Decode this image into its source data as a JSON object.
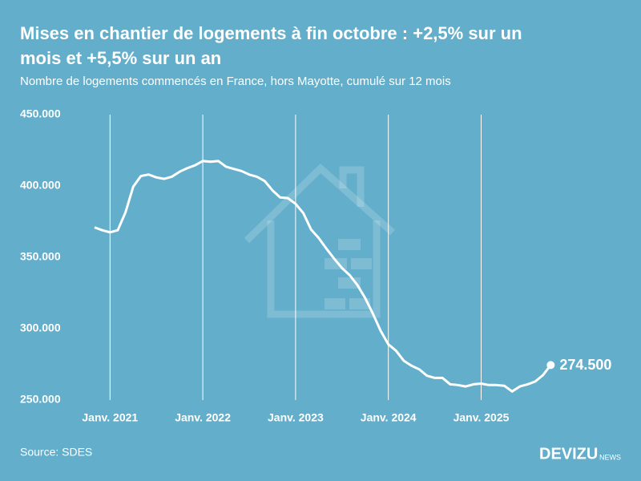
{
  "chart_data": {
    "type": "line",
    "title": [
      "Mises en chantier de logements à fin octobre : +2,5% sur un",
      "mois et +5,5% sur un an"
    ],
    "subtitle": "Nombre de logements commencés en France, hors Mayotte, cumulé sur 12 mois",
    "source": "Source: SDES",
    "brand": "DEVIZU",
    "brand_suffix": "NEWS",
    "background": "#62aecb",
    "color": "#ffffff",
    "xgrid": true,
    "categories": [
      null,
      null,
      "Janv. 2021",
      null,
      null,
      null,
      null,
      null,
      null,
      null,
      null,
      null,
      null,
      null,
      "Janv. 2022",
      null,
      null,
      null,
      null,
      null,
      null,
      null,
      null,
      null,
      null,
      null,
      "Janv. 2023",
      null,
      null,
      null,
      null,
      null,
      null,
      null,
      null,
      null,
      null,
      null,
      "Janv. 2024",
      null,
      null,
      null,
      null,
      null,
      null,
      null,
      null,
      null,
      null,
      null,
      "Janv. 2025",
      null,
      null,
      null,
      null,
      null,
      null,
      null,
      null,
      null
    ],
    "values": [
      371000,
      369000,
      367500,
      369000,
      381500,
      399500,
      407000,
      408000,
      406000,
      405000,
      406500,
      410000,
      412500,
      414500,
      417500,
      417000,
      417500,
      413500,
      412000,
      410500,
      408000,
      406500,
      403500,
      397000,
      392000,
      391500,
      387500,
      381000,
      369500,
      363500,
      356000,
      349000,
      342500,
      337500,
      330500,
      321500,
      310500,
      298500,
      289000,
      284500,
      277500,
      274000,
      271500,
      267000,
      265500,
      265500,
      261000,
      260500,
      259500,
      261000,
      261500,
      260500,
      260500,
      260000,
      256000,
      259500,
      261000,
      263000,
      267500,
      274500
    ],
    "value_labels": [
      null,
      null,
      null,
      null,
      null,
      null,
      null,
      null,
      null,
      null,
      null,
      null,
      null,
      null,
      null,
      null,
      null,
      null,
      null,
      null,
      null,
      null,
      null,
      null,
      null,
      null,
      null,
      null,
      null,
      null,
      null,
      null,
      null,
      null,
      null,
      null,
      null,
      null,
      null,
      null,
      null,
      null,
      null,
      null,
      null,
      null,
      null,
      null,
      null,
      null,
      null,
      null,
      null,
      null,
      null,
      null,
      null,
      null,
      null,
      "274.500"
    ],
    "ylim": [
      250000,
      450000
    ],
    "yticks": [
      {
        "value": 250000,
        "label": "250.000"
      },
      {
        "value": 300000,
        "label": "300.000"
      },
      {
        "value": 350000,
        "label": "350.000"
      },
      {
        "value": 400000,
        "label": "400.000"
      },
      {
        "value": 450000,
        "label": "450.000"
      }
    ]
  }
}
